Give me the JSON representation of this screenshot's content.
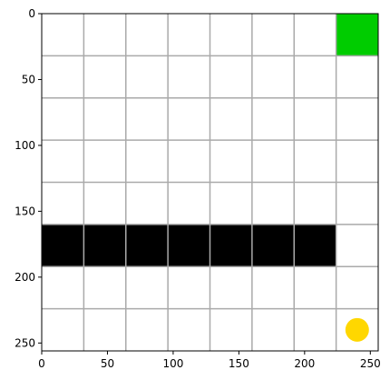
{
  "grid": {
    "rows": 8,
    "cols": 8,
    "cell_size": 32,
    "extent": 256,
    "grid_color": "#aaaaaa",
    "background_color": "#ffffff"
  },
  "axes": {
    "x_ticks": [
      "0",
      "50",
      "100",
      "150",
      "200",
      "250"
    ],
    "y_ticks": [
      "0",
      "50",
      "100",
      "150",
      "200",
      "250"
    ]
  },
  "cells": {
    "goal": {
      "row": 0,
      "col": 7,
      "color": "#00cc00"
    },
    "walls": [
      {
        "row": 5,
        "col": 0
      },
      {
        "row": 5,
        "col": 1
      },
      {
        "row": 5,
        "col": 2
      },
      {
        "row": 5,
        "col": 3
      },
      {
        "row": 5,
        "col": 4
      },
      {
        "row": 5,
        "col": 5
      },
      {
        "row": 5,
        "col": 6
      }
    ],
    "wall_color": "#000000",
    "agent": {
      "row": 7,
      "col": 7,
      "color": "#ffd700"
    }
  }
}
